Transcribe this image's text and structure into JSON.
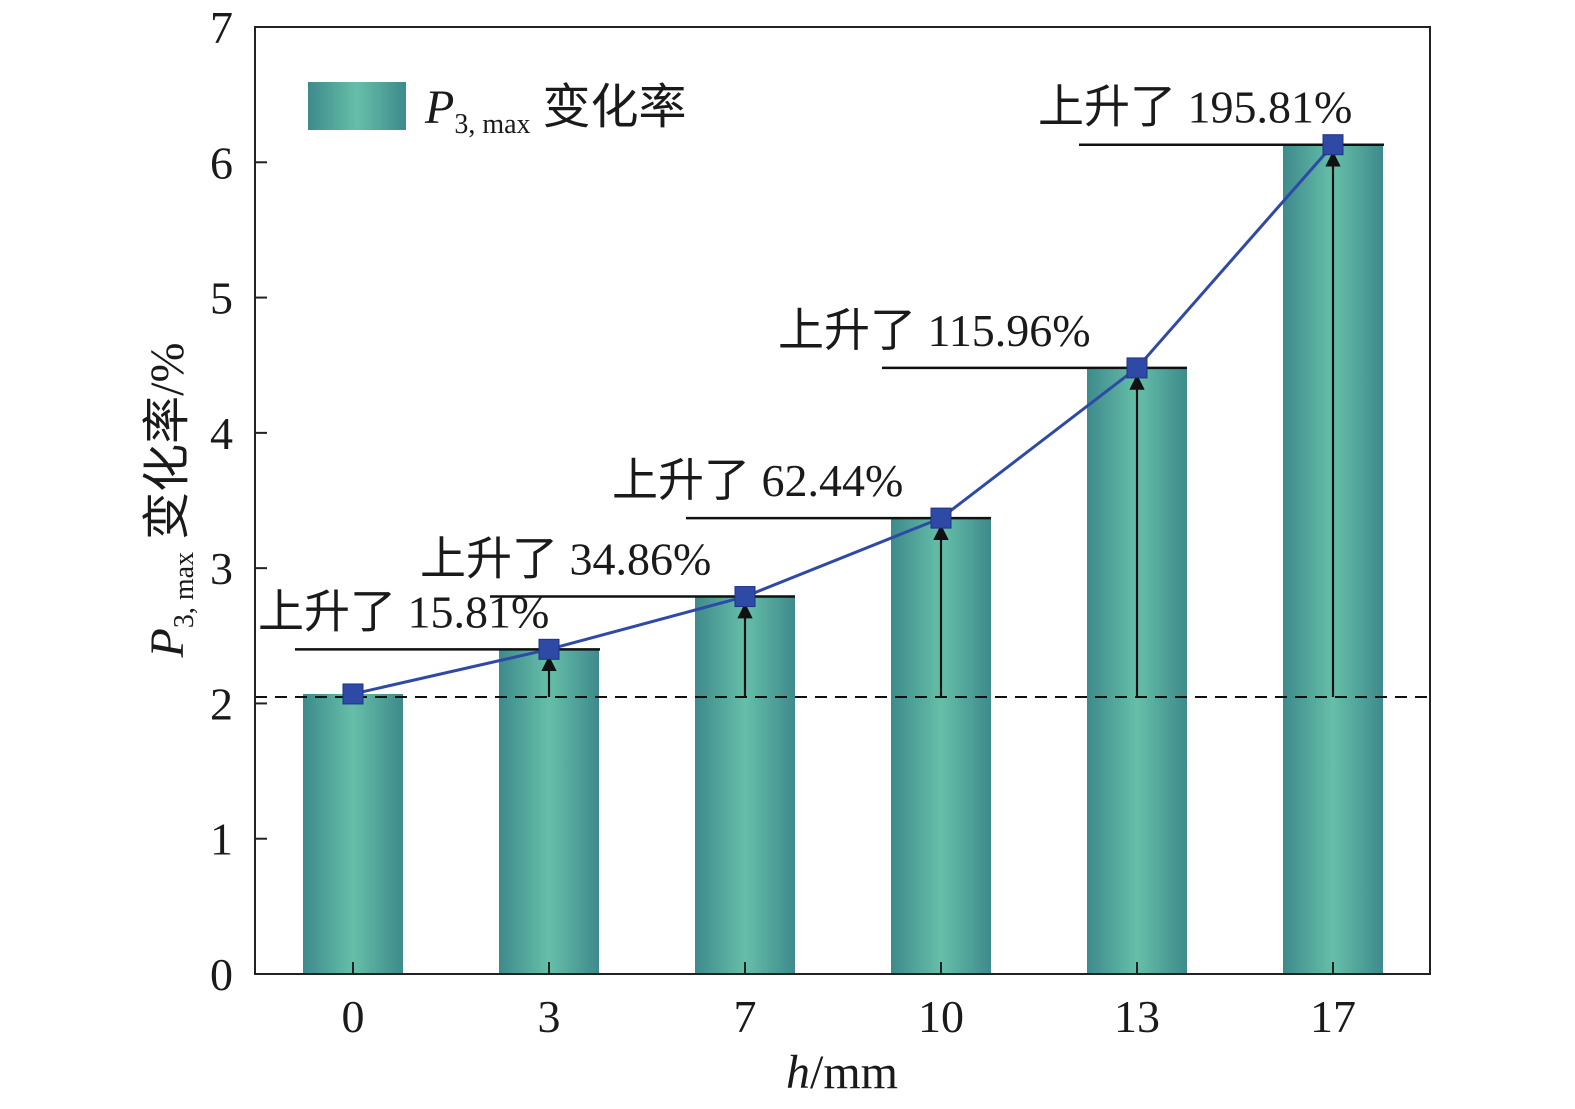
{
  "chart_data": {
    "type": "bar",
    "categories": [
      "0",
      "3",
      "7",
      "10",
      "13",
      "17"
    ],
    "values": [
      2.07,
      2.4,
      2.79,
      3.37,
      4.48,
      6.13
    ],
    "ylim": [
      0,
      7
    ],
    "yticks": [
      "0",
      "1",
      "2",
      "3",
      "4",
      "5",
      "6",
      "7"
    ],
    "xlabel": {
      "var": "h",
      "unit": "/mm"
    },
    "ylabel": {
      "var": "P",
      "sub": "3, max",
      "rest": " 变化率/%"
    },
    "legend": {
      "var": "P",
      "sub": "3, max",
      "text": " 变化率",
      "position": "top-left"
    },
    "baseline_value": 2.07,
    "annotations": [
      "上升了 15.81%",
      "上升了 34.86%",
      "上升了 62.44%",
      "上升了 115.96%",
      "上升了 195.81%"
    ],
    "line_color": "#2e4aa6",
    "bar_color_edge": "#3e8a8c",
    "bar_color_center": "#66bfa8"
  }
}
